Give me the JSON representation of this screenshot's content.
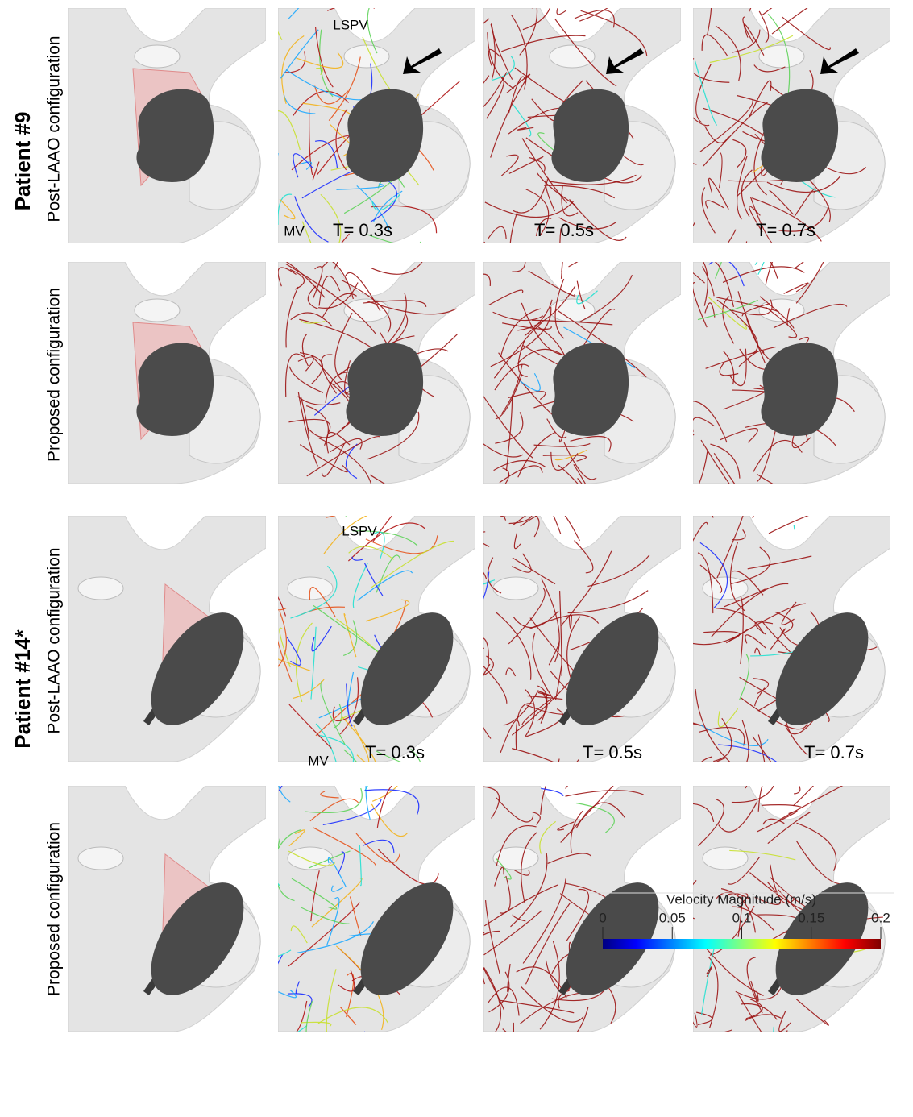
{
  "patients": [
    {
      "label": "Patient #9",
      "rows": [
        {
          "label": "Post-LAAO configuration",
          "lspv": "LSPV",
          "mv": "MV",
          "times": [
            "T= 0.3s",
            "T= 0.5s",
            "T= 0.7s"
          ]
        },
        {
          "label": "Proposed configuration"
        }
      ]
    },
    {
      "label": "Patient #14*",
      "rows": [
        {
          "label": "Post-LAAO configuration",
          "lspv": "LSPV",
          "mv": "MV",
          "times": [
            "T= 0.3s",
            "T= 0.5s",
            "T= 0.7s"
          ]
        },
        {
          "label": "Proposed configuration"
        }
      ]
    }
  ],
  "colorbar": {
    "title": "Velocity Magnitude (m/s)",
    "lim": [
      0,
      0.2
    ],
    "ticks": [
      0,
      0.05,
      0.1,
      0.15,
      0.2
    ]
  }
}
